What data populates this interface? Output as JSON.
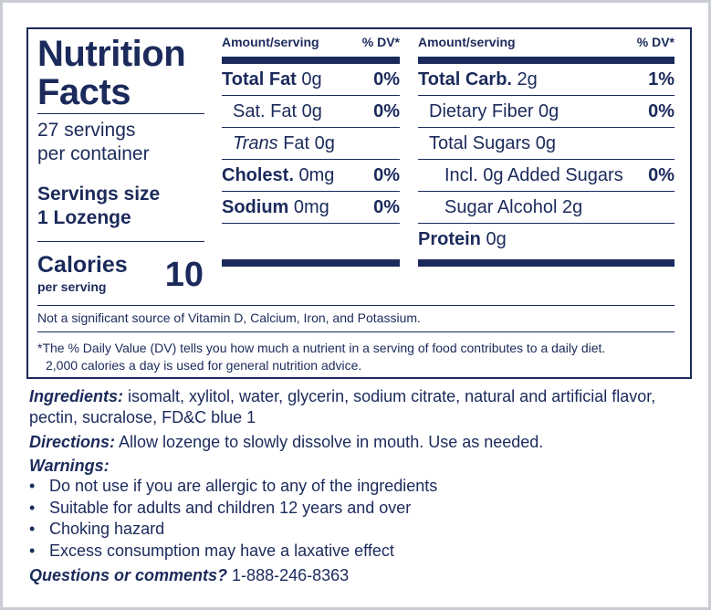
{
  "panel": {
    "title": "Nutrition Facts",
    "servings_line1": "27 servings",
    "servings_line2": "per container",
    "serving_size_label": "Servings size",
    "serving_size_value": "1 Lozenge",
    "calories_label": "Calories",
    "calories_sub": "per serving",
    "calories_value": "10"
  },
  "columns": {
    "left": {
      "head_amount": "Amount/serving",
      "head_dv": "% DV*",
      "rows": [
        {
          "name": "Total Fat",
          "amount": "0g",
          "dv": "0%"
        },
        {
          "name": "Sat. Fat",
          "amount": "0g",
          "dv": "0%"
        },
        {
          "name": "Trans",
          "suffix": "Fat 0g",
          "dv": ""
        },
        {
          "name": "Cholest.",
          "amount": "0mg",
          "dv": "0%"
        },
        {
          "name": "Sodium",
          "amount": "0mg",
          "dv": "0%"
        }
      ]
    },
    "right": {
      "head_amount": "Amount/serving",
      "head_dv": "% DV*",
      "rows": [
        {
          "name": "Total Carb.",
          "amount": "2g",
          "dv": "1%"
        },
        {
          "name": "Dietary Fiber",
          "amount": "0g",
          "dv": "0%"
        },
        {
          "name": "Total Sugars",
          "amount": "0g",
          "dv": ""
        },
        {
          "name": "Incl. 0g Added Sugars",
          "amount": "",
          "dv": "0%"
        },
        {
          "name": "Sugar Alcohol",
          "amount": "2g",
          "dv": ""
        },
        {
          "name": "Protein",
          "amount": "0g",
          "dv": ""
        }
      ]
    }
  },
  "footnotes": {
    "not_significant": "Not a significant source of Vitamin D, Calcium, Iron, and Potassium.",
    "dv_line1": "*The % Daily Value (DV) tells you how much a nutrient in a serving of food contributes to a daily diet.",
    "dv_line2": "2,000 calories a day is used for general nutrition advice."
  },
  "ingredients": {
    "label": "Ingredients:",
    "text": " isomalt, xylitol, water, glycerin, sodium citrate, natural and artificial flavor, pectin, sucralose, FD&C blue 1"
  },
  "directions": {
    "label": "Directions:",
    "text": " Allow lozenge to slowly dissolve in mouth. Use as needed."
  },
  "warnings": {
    "label": "Warnings:",
    "bullet": "•",
    "items": [
      "Do not use if you are allergic to any of the ingredients",
      "Suitable for adults and children 12 years and over",
      "Choking hazard",
      "Excess consumption may have a laxative effect"
    ]
  },
  "questions": {
    "label": "Questions or comments?",
    "phone": " 1-888-246-8363"
  }
}
